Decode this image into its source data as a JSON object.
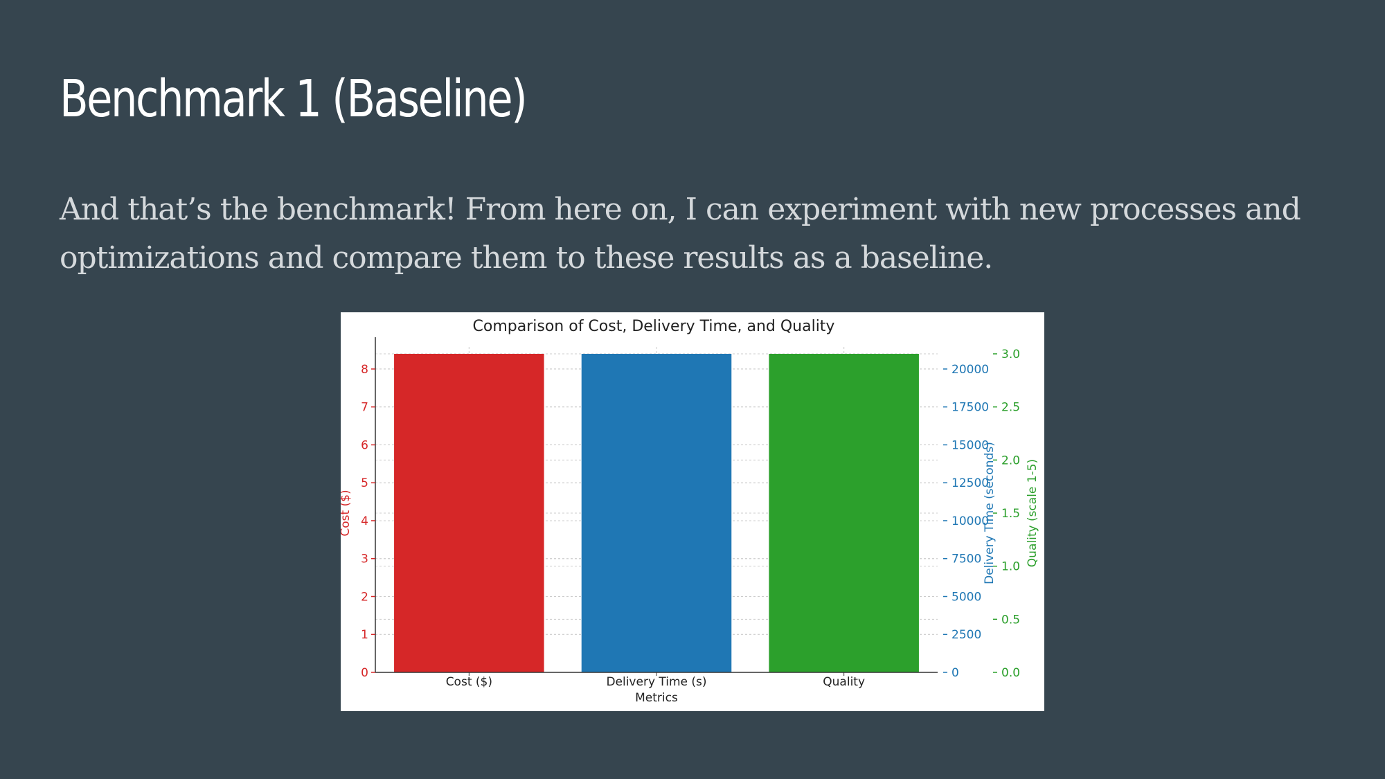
{
  "slide": {
    "title": "Benchmark 1 (Baseline)",
    "body": "And that’s the benchmark! From here on, I can experiment with new processes and optimizations and compare them to these results as a baseline."
  },
  "chart_data": {
    "type": "bar",
    "title": "Comparison of Cost, Delivery Time, and Quality",
    "xlabel": "Metrics",
    "categories": [
      "Cost ($)",
      "Delivery Time (s)",
      "Quality"
    ],
    "grid": true,
    "axes": [
      {
        "label": "Cost ($)",
        "side": "left",
        "color": "#d62728",
        "ylim": [
          0,
          8.4
        ],
        "ticks": [
          0,
          1,
          2,
          3,
          4,
          5,
          6,
          7,
          8
        ],
        "tick_labels": [
          "0",
          "1",
          "2",
          "3",
          "4",
          "5",
          "6",
          "7",
          "8"
        ]
      },
      {
        "label": "Delivery Time (seconds)",
        "side": "right",
        "color": "#1f77b4",
        "ylim": [
          0,
          21000
        ],
        "ticks": [
          0,
          2500,
          5000,
          7500,
          10000,
          12500,
          15000,
          17500,
          20000
        ],
        "tick_labels": [
          "0",
          "2500",
          "5000",
          "7500",
          "10000",
          "12500",
          "15000",
          "17500",
          "20000"
        ]
      },
      {
        "label": "Quality (scale 1-5)",
        "side": "right-outer",
        "color": "#2ca02c",
        "ylim": [
          0,
          3.0
        ],
        "ticks": [
          0,
          0.5,
          1.0,
          1.5,
          2.0,
          2.5,
          3.0
        ],
        "tick_labels": [
          "0.0",
          "0.5",
          "1.0",
          "1.5",
          "2.0",
          "2.5",
          "3.0"
        ]
      }
    ],
    "series": [
      {
        "name": "Cost ($)",
        "category": "Cost ($)",
        "axis": 0,
        "value": 8.4,
        "color": "#d62728"
      },
      {
        "name": "Delivery Time (seconds)",
        "category": "Delivery Time (s)",
        "axis": 1,
        "value": 21000,
        "color": "#1f77b4"
      },
      {
        "name": "Quality (scale 1-5)",
        "category": "Quality",
        "axis": 2,
        "value": 3.0,
        "color": "#2ca02c"
      }
    ]
  }
}
